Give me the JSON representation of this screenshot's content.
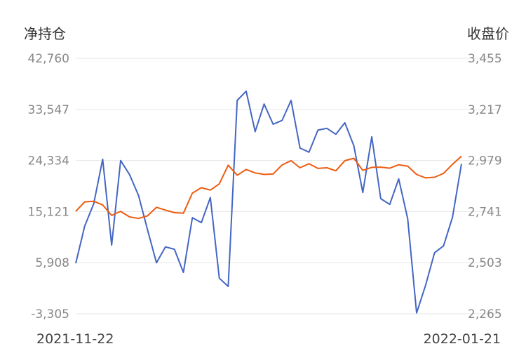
{
  "chart_data": {
    "type": "line",
    "left_axis_title": "净持仓",
    "right_axis_title": "收盘价",
    "left_ticks": [
      "42,760",
      "33,547",
      "24,334",
      "15,121",
      "5,908",
      "-3,305"
    ],
    "right_ticks": [
      "3,455",
      "3,217",
      "2,979",
      "2,741",
      "2,503",
      "2,265"
    ],
    "left_ylim": [
      -3305,
      42760
    ],
    "right_ylim": [
      2265,
      3455
    ],
    "x_start_label": "2021-11-22",
    "x_end_label": "2022-01-21",
    "grid": true,
    "series": [
      {
        "axis": "left",
        "color": "#4466c4",
        "values": [
          5790,
          12510,
          16510,
          24560,
          9080,
          24320,
          21790,
          18030,
          11870,
          5880,
          8760,
          8320,
          4150,
          14020,
          13140,
          17650,
          3110,
          1630,
          35170,
          36820,
          29530,
          34510,
          30880,
          31550,
          35170,
          26580,
          25830,
          29800,
          30130,
          29060,
          31130,
          27000,
          18550,
          28600,
          17450,
          16410,
          21020,
          13840,
          -3150,
          1820,
          7690,
          8930,
          14110,
          23730
        ]
      },
      {
        "axis": "right",
        "color": "#ee5c10",
        "values": [
          2742,
          2786,
          2789,
          2772,
          2723,
          2742,
          2716,
          2709,
          2721,
          2761,
          2748,
          2736,
          2733,
          2827,
          2852,
          2841,
          2870,
          2957,
          2910,
          2937,
          2921,
          2914,
          2916,
          2958,
          2978,
          2945,
          2964,
          2942,
          2945,
          2931,
          2978,
          2989,
          2933,
          2947,
          2948,
          2943,
          2959,
          2953,
          2914,
          2898,
          2901,
          2919,
          2961,
          2999
        ]
      }
    ]
  }
}
